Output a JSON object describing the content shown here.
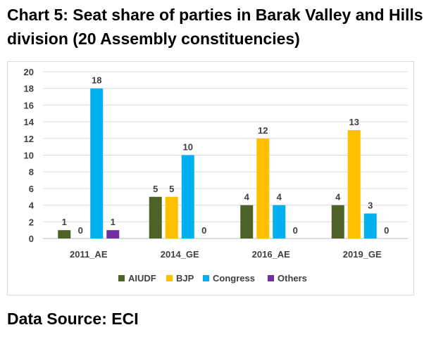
{
  "title_line1": "Chart 5: Seat share of parties in Barak Valley and Hills",
  "title_line2": "division (20 Assembly constituencies)",
  "source": "Data Source: ECI",
  "chart_data": {
    "type": "bar",
    "categories": [
      "2011_AE",
      "2014_GE",
      "2016_AE",
      "2019_GE"
    ],
    "series": [
      {
        "name": "AIUDF",
        "color": "#4e6128",
        "values": [
          1,
          5,
          4,
          4
        ]
      },
      {
        "name": "BJP",
        "color": "#ffc000",
        "values": [
          0,
          5,
          12,
          13
        ]
      },
      {
        "name": "Congress",
        "color": "#00b0f0",
        "values": [
          18,
          10,
          4,
          3
        ]
      },
      {
        "name": "Others",
        "color": "#7030a0",
        "values": [
          1,
          0,
          0,
          0
        ]
      }
    ],
    "ylim": [
      0,
      20
    ],
    "yticks": [
      0,
      2,
      4,
      6,
      8,
      10,
      12,
      14,
      16,
      18,
      20
    ],
    "grid": true,
    "legend_position": "bottom"
  }
}
